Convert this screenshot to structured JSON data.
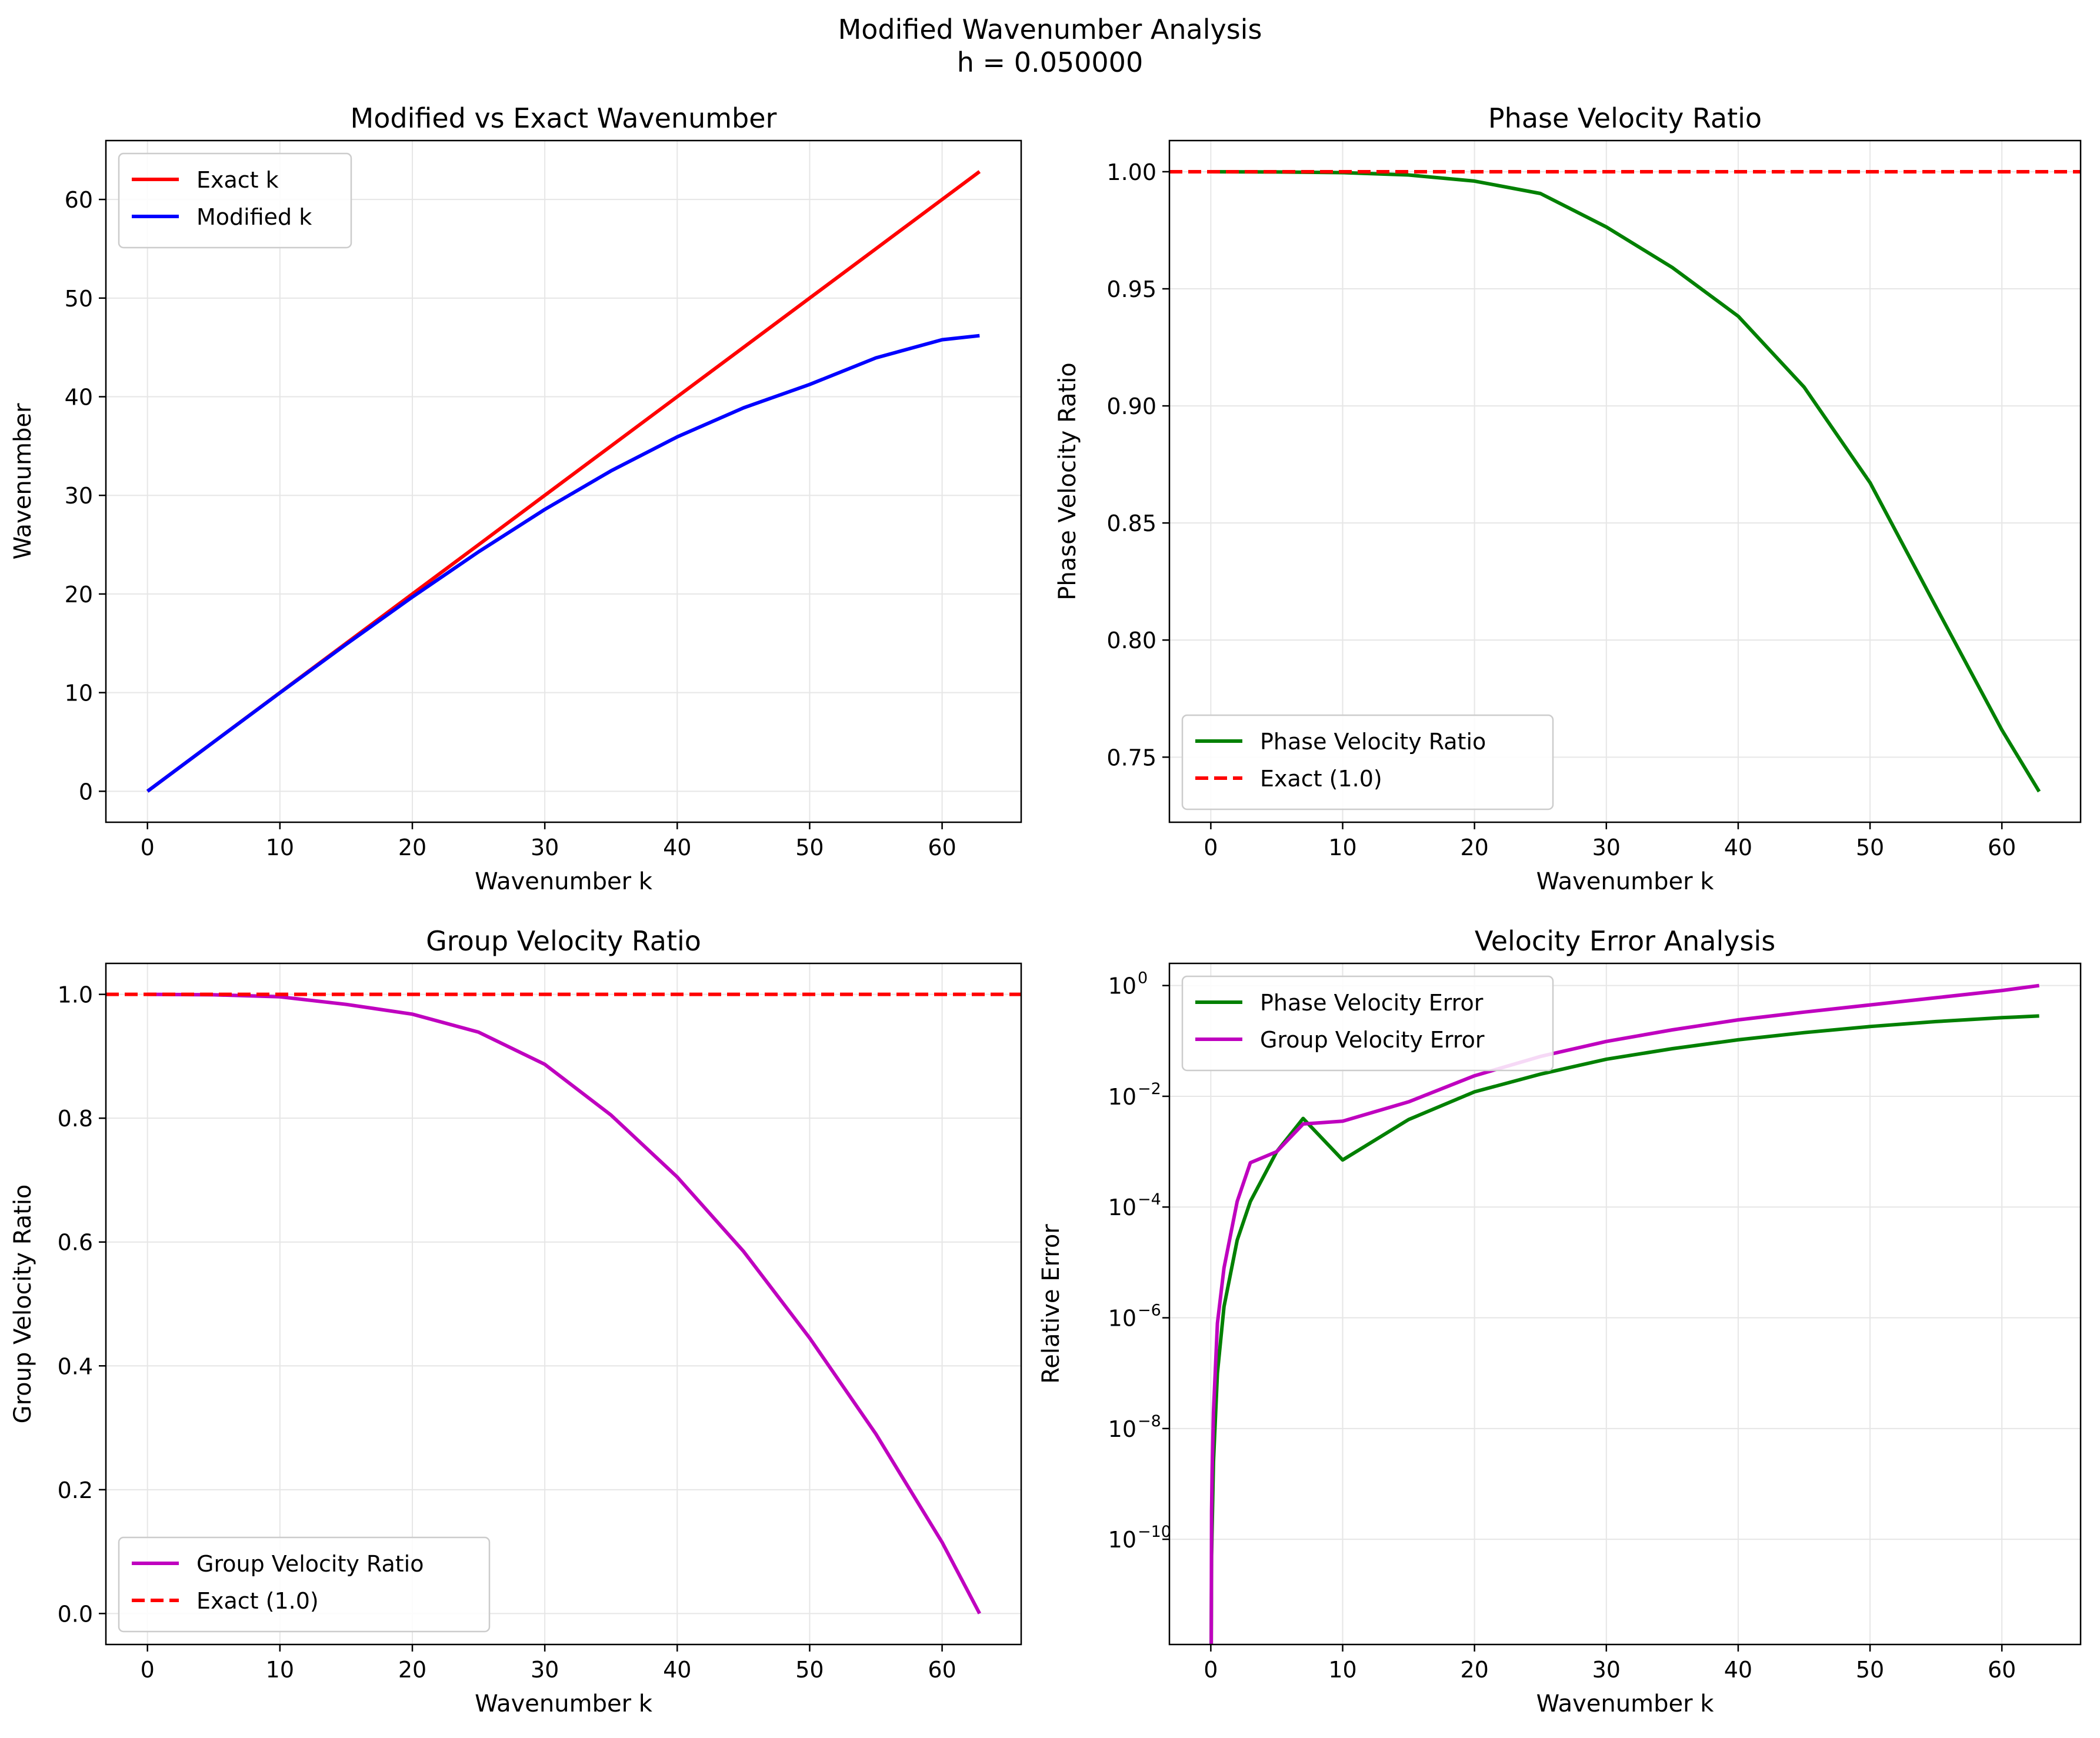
{
  "suptitle": {
    "line1": "Modified Wavenumber Analysis",
    "line2": "h = 0.050000"
  },
  "colors": {
    "exact_k": "#ff0000",
    "modified_k": "#0000ff",
    "phase": "#008000",
    "group": "#bf00bf",
    "exact_ref": "#ff0000",
    "grid": "#e6e6e6"
  },
  "chart_data": [
    {
      "id": "wavenumber",
      "type": "line",
      "title": "Modified vs Exact Wavenumber",
      "xlabel": "Wavenumber k",
      "ylabel": "Wavenumber",
      "xlim": [
        -3.14,
        65.97
      ],
      "ylim": [
        -3.14,
        65.97
      ],
      "yscale": "linear",
      "xticks": [
        0,
        10,
        20,
        30,
        40,
        50,
        60
      ],
      "xtick_labels": [
        "0",
        "10",
        "20",
        "30",
        "40",
        "50",
        "60"
      ],
      "yticks": [
        0,
        10,
        20,
        30,
        40,
        50,
        60
      ],
      "ytick_labels": [
        "0",
        "10",
        "20",
        "30",
        "40",
        "50",
        "60"
      ],
      "legend": "top-left",
      "series": [
        {
          "name": "Exact k",
          "color": "#ff0000",
          "dash": false,
          "x": [
            0,
            5,
            10,
            15,
            20,
            25,
            30,
            35,
            40,
            45,
            50,
            55,
            60,
            62.83
          ],
          "y": [
            0,
            5,
            10,
            15,
            20,
            25,
            30,
            35,
            40,
            45,
            50,
            55,
            60,
            62.83
          ]
        },
        {
          "name": "Modified k",
          "color": "#0000ff",
          "dash": false,
          "x": [
            0,
            5,
            10,
            15,
            20,
            25,
            30,
            35,
            40,
            45,
            50,
            55,
            60,
            62.83
          ],
          "y": [
            0,
            5.0,
            9.98,
            14.9,
            19.69,
            24.28,
            28.57,
            32.48,
            35.93,
            38.87,
            41.24,
            43.94,
            45.78,
            46.19
          ]
        }
      ]
    },
    {
      "id": "phase",
      "type": "line",
      "title": "Phase Velocity Ratio",
      "xlabel": "Wavenumber k",
      "ylabel": "Phase Velocity Ratio",
      "xlim": [
        -3.14,
        65.97
      ],
      "ylim": [
        0.7222,
        1.0133
      ],
      "yscale": "linear",
      "xticks": [
        0,
        10,
        20,
        30,
        40,
        50,
        60
      ],
      "xtick_labels": [
        "0",
        "10",
        "20",
        "30",
        "40",
        "50",
        "60"
      ],
      "yticks": [
        0.75,
        0.8,
        0.85,
        0.9,
        0.95,
        1.0
      ],
      "ytick_labels": [
        "0.75",
        "0.80",
        "0.85",
        "0.90",
        "0.95",
        "1.00"
      ],
      "legend": "bottom-left",
      "series": [
        {
          "name": "Phase Velocity Ratio",
          "color": "#008000",
          "dash": false,
          "x": [
            0,
            5,
            10,
            15,
            20,
            25,
            30,
            35,
            40,
            45,
            50,
            55,
            60,
            62.83
          ],
          "y": [
            1.0,
            0.9999,
            0.9996,
            0.9986,
            0.996,
            0.9907,
            0.9764,
            0.9591,
            0.9383,
            0.908,
            0.8672,
            0.8142,
            0.7616,
            0.7353
          ]
        },
        {
          "name": "Exact (1.0)",
          "color": "#ff0000",
          "dash": true,
          "x": [
            -3.14,
            65.97
          ],
          "y": [
            1.0,
            1.0
          ]
        }
      ]
    },
    {
      "id": "group",
      "type": "line",
      "title": "Group Velocity Ratio",
      "xlabel": "Wavenumber k",
      "ylabel": "Group Velocity Ratio",
      "xlim": [
        -3.14,
        65.97
      ],
      "ylim": [
        -0.05,
        1.05
      ],
      "yscale": "linear",
      "xticks": [
        0,
        10,
        20,
        30,
        40,
        50,
        60
      ],
      "xtick_labels": [
        "0",
        "10",
        "20",
        "30",
        "40",
        "50",
        "60"
      ],
      "yticks": [
        0.0,
        0.2,
        0.4,
        0.6,
        0.8,
        1.0
      ],
      "ytick_labels": [
        "0.0",
        "0.2",
        "0.4",
        "0.6",
        "0.8",
        "1.0"
      ],
      "legend": "bottom-left",
      "series": [
        {
          "name": "Group Velocity Ratio",
          "color": "#bf00bf",
          "dash": false,
          "x": [
            0,
            5,
            10,
            15,
            20,
            25,
            30,
            35,
            40,
            45,
            50,
            55,
            60,
            62.83
          ],
          "y": [
            1.0,
            0.9993,
            0.996,
            0.9838,
            0.968,
            0.939,
            0.887,
            0.805,
            0.705,
            0.585,
            0.445,
            0.29,
            0.115,
            0.0
          ]
        },
        {
          "name": "Exact (1.0)",
          "color": "#ff0000",
          "dash": true,
          "x": [
            -3.14,
            65.97
          ],
          "y": [
            1.0,
            1.0
          ]
        }
      ]
    },
    {
      "id": "error",
      "type": "line",
      "title": "Velocity Error Analysis",
      "xlabel": "Wavenumber k",
      "ylabel": "Relative Error",
      "xlim": [
        -3.14,
        65.97
      ],
      "ylim": [
        -11.9,
        0.4
      ],
      "yscale": "log10",
      "xticks": [
        0,
        10,
        20,
        30,
        40,
        50,
        60
      ],
      "xtick_labels": [
        "0",
        "10",
        "20",
        "30",
        "40",
        "50",
        "60"
      ],
      "yticks": [
        0,
        -2,
        -4,
        -6,
        -8,
        -10
      ],
      "ytick_base": "10",
      "ytick_exponents": [
        "0",
        "−2",
        "−4",
        "−6",
        "−8",
        "−10"
      ],
      "legend": "top-left",
      "series": [
        {
          "name": "Phase Velocity Error",
          "color": "#008000",
          "dash": false,
          "x": [
            0.03,
            0.06,
            0.1,
            0.2,
            0.5,
            1,
            2,
            3,
            5,
            7,
            10,
            15,
            20,
            25,
            30,
            35,
            40,
            45,
            50,
            55,
            60,
            62.83
          ],
          "y": [
            -11.9,
            -10.3,
            -9.8,
            -8.6,
            -7.0,
            -5.8,
            -4.6,
            -3.9,
            -3.0,
            -2.4,
            -3.15,
            -2.42,
            -1.92,
            -1.6,
            -1.33,
            -1.14,
            -0.98,
            -0.85,
            -0.74,
            -0.65,
            -0.58,
            -0.55
          ]
        },
        {
          "name": "Group Velocity Error",
          "color": "#bf00bf",
          "dash": false,
          "x": [
            0.03,
            0.06,
            0.1,
            0.2,
            0.5,
            1,
            2,
            3,
            5,
            7,
            10,
            15,
            20,
            25,
            30,
            35,
            40,
            45,
            50,
            55,
            60,
            62.83
          ],
          "y": [
            -11.9,
            -9.5,
            -8.8,
            -7.7,
            -6.1,
            -5.1,
            -3.9,
            -3.2,
            -3.0,
            -2.5,
            -2.45,
            -2.1,
            -1.63,
            -1.28,
            -1.01,
            -0.8,
            -0.62,
            -0.48,
            -0.35,
            -0.22,
            -0.09,
            0.0
          ]
        }
      ]
    }
  ]
}
